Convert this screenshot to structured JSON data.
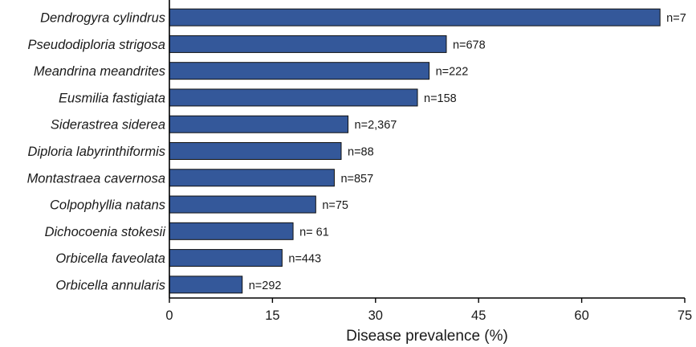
{
  "chart_data": {
    "type": "bar",
    "orientation": "horizontal",
    "categories": [
      "Dendrogyra cylindrus",
      "Pseudodiploria strigosa",
      "Meandrina meandrites",
      "Eusmilia fastigiata",
      "Siderastrea siderea",
      "Diploria labyrinthiformis",
      "Montastraea cavernosa",
      "Colpophyllia natans",
      "Dichocoenia stokesii",
      "Orbicella faveolata",
      "Orbicella annularis"
    ],
    "values": [
      71.4,
      40.3,
      37.8,
      36.1,
      26.0,
      25.0,
      24.0,
      21.3,
      18.0,
      16.4,
      10.6
    ],
    "sample_sizes": [
      "n=7",
      "n=678",
      "n=222",
      "n=158",
      "n=2,367",
      "n=88",
      "n=857",
      "n=75",
      "n= 61",
      "n=443",
      "n=292"
    ],
    "xlabel": "Disease prevalence (%)",
    "ylabel": "",
    "xlim": [
      0,
      75
    ],
    "xticks": [
      0,
      15,
      30,
      45,
      60,
      75
    ],
    "xtick_labels": [
      "0",
      "15",
      "30",
      "45",
      "60",
      "75"
    ],
    "bar_color": "#34589a",
    "grid": false,
    "legend": "none"
  }
}
